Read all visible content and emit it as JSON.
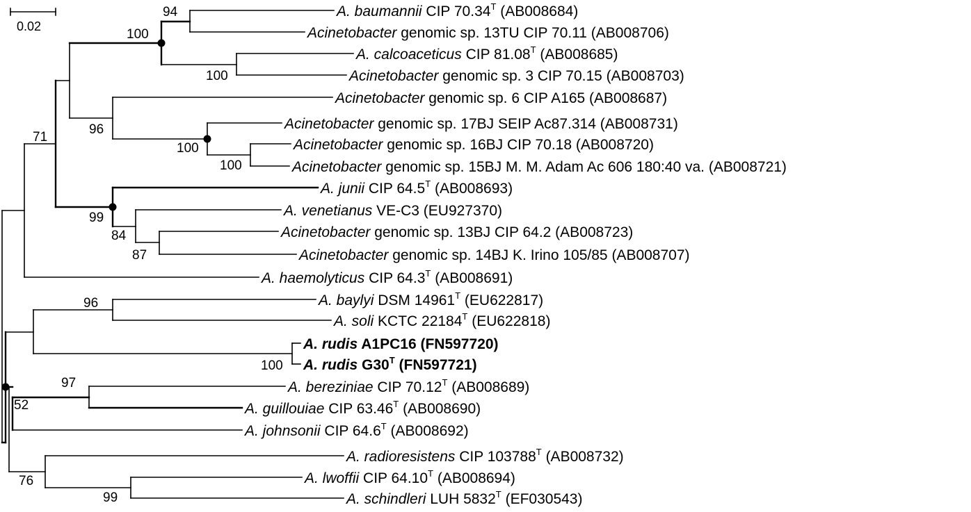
{
  "scale_bar": {
    "label": "0.02"
  },
  "taxa": [
    {
      "parts": [
        [
          "A. baumannii",
          "i"
        ],
        [
          " CIP 70.34",
          ""
        ],
        [
          "T",
          "sup"
        ],
        [
          " (AB008684)",
          ""
        ]
      ]
    },
    {
      "parts": [
        [
          "Acinetobacter",
          "i"
        ],
        [
          " genomic sp. 13TU CIP 70.11 (AB008706)",
          ""
        ]
      ]
    },
    {
      "parts": [
        [
          "A. calcoaceticus",
          "i"
        ],
        [
          " CIP 81.08",
          ""
        ],
        [
          "T",
          "sup"
        ],
        [
          " (AB008685)",
          ""
        ]
      ]
    },
    {
      "parts": [
        [
          "Acinetobacter",
          "i"
        ],
        [
          " genomic sp. 3 CIP 70.15 (AB008703)",
          ""
        ]
      ]
    },
    {
      "parts": [
        [
          "Acinetobacter",
          "i"
        ],
        [
          " genomic sp. 6 CIP A165 (AB008687)",
          ""
        ]
      ]
    },
    {
      "parts": [
        [
          "Acinetobacter",
          "i"
        ],
        [
          " genomic sp. 17BJ SEIP Ac87.314 (AB008731)",
          ""
        ]
      ]
    },
    {
      "parts": [
        [
          "Acinetobacter",
          "i"
        ],
        [
          " genomic sp. 16BJ CIP 70.18 (AB008720)",
          ""
        ]
      ]
    },
    {
      "parts": [
        [
          "Acinetobacter",
          "i"
        ],
        [
          " genomic sp. 15BJ M. M. Adam Ac 606 180:40 va. (AB008721)",
          ""
        ]
      ]
    },
    {
      "parts": [
        [
          "A. junii",
          "i"
        ],
        [
          " CIP 64.5",
          ""
        ],
        [
          "T",
          "sup"
        ],
        [
          " (AB008693)",
          ""
        ]
      ]
    },
    {
      "parts": [
        [
          "A. venetianus",
          "i"
        ],
        [
          " VE-C3 (EU927370)",
          ""
        ]
      ]
    },
    {
      "parts": [
        [
          "Acinetobacter",
          "i"
        ],
        [
          " genomic sp. 13BJ CIP 64.2 (AB008723)",
          ""
        ]
      ]
    },
    {
      "parts": [
        [
          "Acinetobacter",
          "i"
        ],
        [
          " genomic sp. 14BJ K. Irino 105/85 (AB008707)",
          ""
        ]
      ]
    },
    {
      "parts": [
        [
          "A. haemolyticus",
          "i"
        ],
        [
          " CIP 64.3",
          ""
        ],
        [
          "T",
          "sup"
        ],
        [
          " (AB008691)",
          ""
        ]
      ]
    },
    {
      "parts": [
        [
          "A. baylyi",
          "i"
        ],
        [
          " DSM 14961",
          ""
        ],
        [
          "T",
          "sup"
        ],
        [
          " (EU622817)",
          ""
        ]
      ]
    },
    {
      "parts": [
        [
          "A. soli",
          "i"
        ],
        [
          " KCTC 22184",
          ""
        ],
        [
          "T",
          "sup"
        ],
        [
          " (EU622818)",
          ""
        ]
      ]
    },
    {
      "parts": [
        [
          "A. rudis",
          "bi"
        ],
        [
          " A1PC16 (FN597720)",
          "b"
        ]
      ]
    },
    {
      "parts": [
        [
          "A. rudis",
          "bi"
        ],
        [
          " G30",
          "b"
        ],
        [
          "T",
          "bsup"
        ],
        [
          " (FN597721)",
          "b"
        ]
      ]
    },
    {
      "parts": [
        [
          "A. bereziniae",
          "i"
        ],
        [
          " CIP 70.12",
          ""
        ],
        [
          "T",
          "sup"
        ],
        [
          " (AB008689)",
          ""
        ]
      ]
    },
    {
      "parts": [
        [
          "A. guillouiae",
          "i"
        ],
        [
          " CIP 63.46",
          ""
        ],
        [
          "T",
          "sup"
        ],
        [
          " (AB008690)",
          ""
        ]
      ]
    },
    {
      "parts": [
        [
          "A. johnsonii",
          "i"
        ],
        [
          " CIP 64.6",
          ""
        ],
        [
          "T",
          "sup"
        ],
        [
          " (AB008692)",
          ""
        ]
      ]
    },
    {
      "parts": [
        [
          "A. radioresistens",
          "i"
        ],
        [
          " CIP 103788",
          ""
        ],
        [
          "T",
          "sup"
        ],
        [
          " (AB008732)",
          ""
        ]
      ]
    },
    {
      "parts": [
        [
          "A. lwoffii",
          "i"
        ],
        [
          " CIP 64.10",
          ""
        ],
        [
          "T",
          "sup"
        ],
        [
          " (AB008694)",
          ""
        ]
      ]
    },
    {
      "parts": [
        [
          "A. schindleri",
          "i"
        ],
        [
          " LUH 5832",
          ""
        ],
        [
          "T",
          "sup"
        ],
        [
          " (EF030543)",
          ""
        ]
      ]
    }
  ],
  "bootstrap_values": [
    "94",
    "100",
    "100",
    "96",
    "100",
    "100",
    "71",
    "99",
    "84",
    "87",
    "96",
    "100",
    "97",
    "52",
    "76",
    "99"
  ]
}
